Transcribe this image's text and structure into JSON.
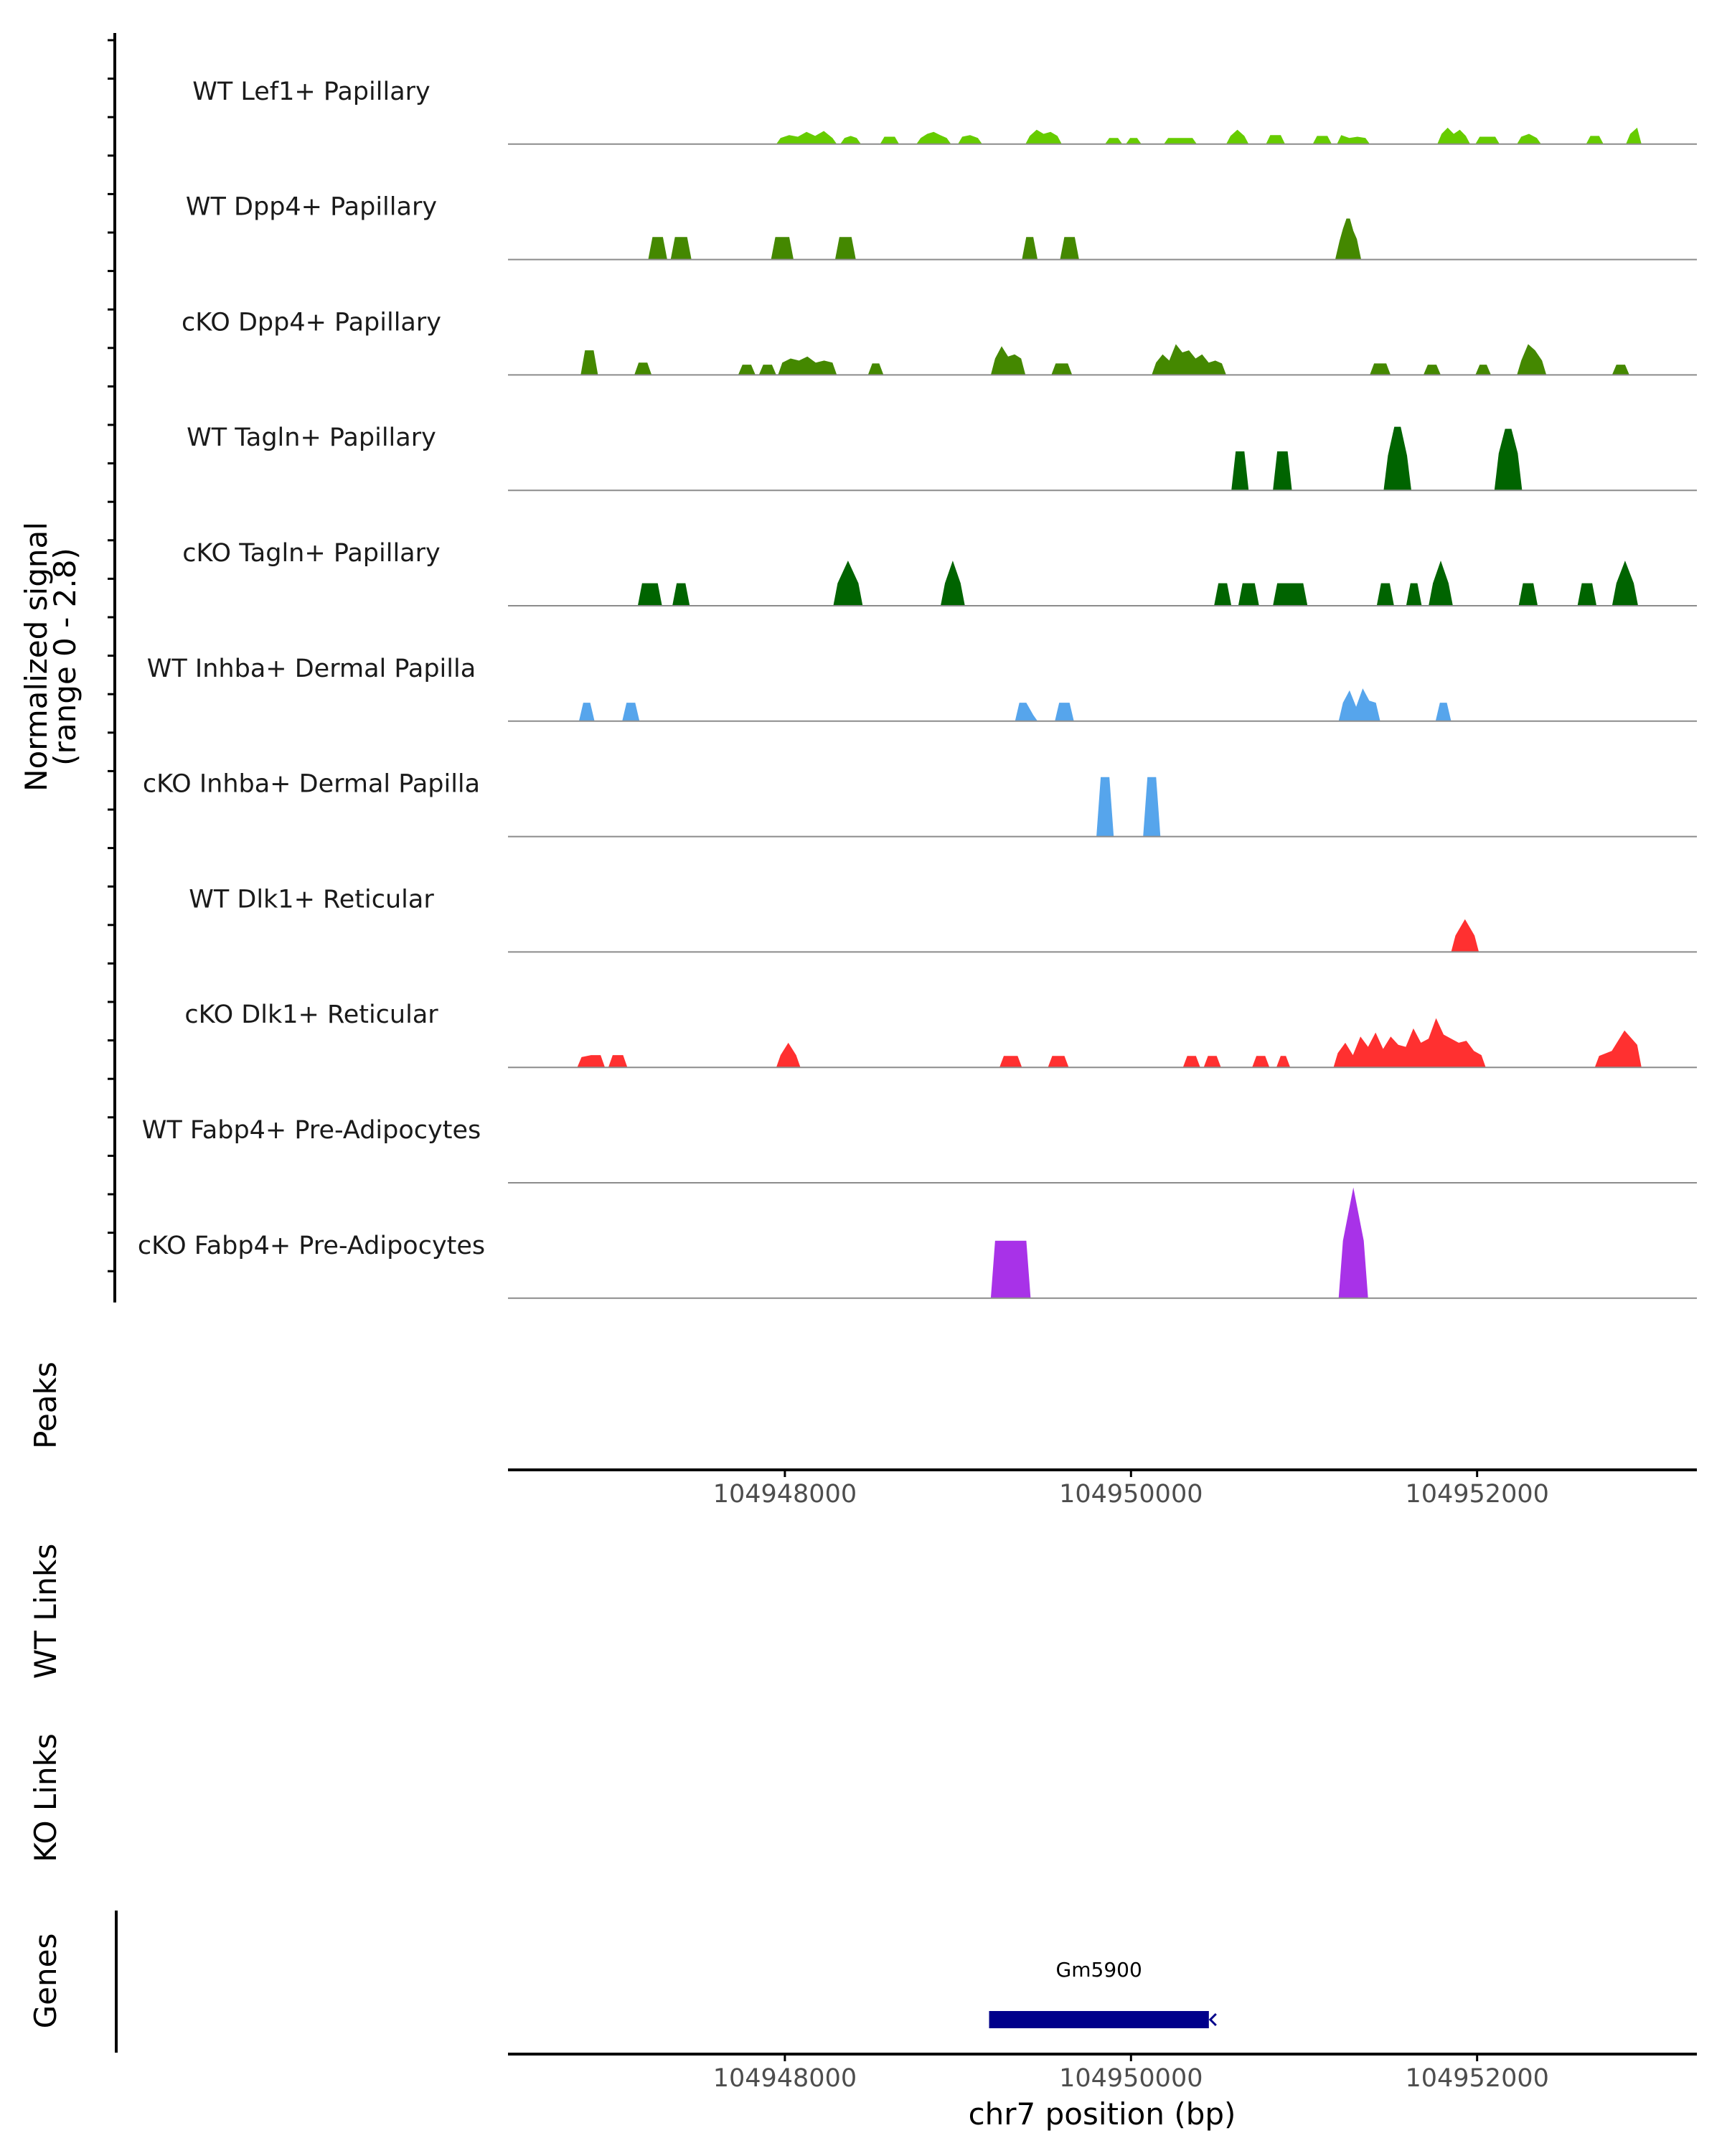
{
  "chart_data": {
    "type": "area",
    "title": "",
    "chromosome": "chr7",
    "xlabel": "chr7 position (bp)",
    "xlim": [
      104946400,
      104953270
    ],
    "x_ticks": [
      104948000,
      104950000,
      104952000
    ],
    "x_tick_labels": [
      "104948000",
      "104950000",
      "104952000"
    ],
    "ylabel_line1": "Normalized signal",
    "ylabel_line2": "(range 0 - 2.8)",
    "ylim": [
      0,
      2.8
    ],
    "peaks_label": "Peaks",
    "wt_links_label": "WT Links",
    "ko_links_label": "KO Links",
    "genes_label": "Genes",
    "gene": {
      "name": "Gm5900",
      "start": 104949180,
      "end": 104950450,
      "strand": "-",
      "color": "#00008B"
    },
    "series": [
      {
        "name": "WT Lef1+ Papillary",
        "color": "#66CC00",
        "segments": [
          {
            "start": 104947950,
            "end": 104948300,
            "heights": [
              0.15,
              0.22,
              0.18,
              0.3,
              0.2,
              0.32,
              0.15
            ]
          },
          {
            "start": 104948320,
            "end": 104948440,
            "heights": [
              0.15,
              0.2,
              0.15
            ]
          },
          {
            "start": 104948550,
            "end": 104948660,
            "heights": [
              0.18,
              0.18
            ]
          },
          {
            "start": 104948760,
            "end": 104948960,
            "heights": [
              0.15,
              0.25,
              0.3,
              0.22,
              0.15
            ]
          },
          {
            "start": 104949000,
            "end": 104949140,
            "heights": [
              0.18,
              0.22,
              0.15
            ]
          },
          {
            "start": 104949390,
            "end": 104949600,
            "heights": [
              0.2,
              0.35,
              0.25,
              0.3,
              0.2
            ]
          },
          {
            "start": 104949850,
            "end": 104949950,
            "heights": [
              0.15,
              0.15
            ]
          },
          {
            "start": 104949970,
            "end": 104950060,
            "heights": [
              0.15,
              0.15
            ]
          },
          {
            "start": 104950190,
            "end": 104950380,
            "heights": [
              0.15,
              0.15,
              0.15
            ]
          },
          {
            "start": 104950550,
            "end": 104950680,
            "heights": [
              0.2,
              0.35,
              0.2
            ]
          },
          {
            "start": 104950780,
            "end": 104950890,
            "heights": [
              0.22,
              0.22
            ]
          },
          {
            "start": 104951050,
            "end": 104951160,
            "heights": [
              0.2,
              0.2
            ]
          },
          {
            "start": 104951190,
            "end": 104951380,
            "heights": [
              0.22,
              0.15,
              0.18,
              0.15
            ]
          },
          {
            "start": 104951770,
            "end": 104951960,
            "heights": [
              0.25,
              0.4,
              0.25,
              0.35,
              0.2
            ]
          },
          {
            "start": 104951990,
            "end": 104952130,
            "heights": [
              0.18,
              0.18
            ]
          },
          {
            "start": 104952230,
            "end": 104952370,
            "heights": [
              0.18,
              0.25,
              0.15
            ]
          },
          {
            "start": 104952630,
            "end": 104952730,
            "heights": [
              0.2,
              0.2
            ]
          },
          {
            "start": 104952860,
            "end": 104952950,
            "heights": [
              0.25,
              0.4
            ]
          }
        ]
      },
      {
        "name": "WT Dpp4+ Papillary",
        "color": "#448800",
        "segments": [
          {
            "start": 104947210,
            "end": 104947320,
            "heights": [
              0.55,
              0.55
            ]
          },
          {
            "start": 104947340,
            "end": 104947460,
            "heights": [
              0.55,
              0.55
            ]
          },
          {
            "start": 104947920,
            "end": 104948050,
            "heights": [
              0.55,
              0.55
            ]
          },
          {
            "start": 104948290,
            "end": 104948410,
            "heights": [
              0.55,
              0.55
            ]
          },
          {
            "start": 104949370,
            "end": 104949460,
            "heights": [
              0.55,
              0.55
            ]
          },
          {
            "start": 104949590,
            "end": 104949700,
            "heights": [
              0.55,
              0.55
            ]
          },
          {
            "start": 104951180,
            "end": 104951330,
            "heights": [
              0.45,
              0.75,
              1.0,
              1.0,
              0.7,
              0.5
            ]
          }
        ]
      },
      {
        "name": "cKO Dpp4+ Papillary",
        "color": "#448800",
        "segments": [
          {
            "start": 104946820,
            "end": 104946920,
            "heights": [
              0.6,
              0.6
            ]
          },
          {
            "start": 104947130,
            "end": 104947230,
            "heights": [
              0.3,
              0.3
            ]
          },
          {
            "start": 104947730,
            "end": 104947830,
            "heights": [
              0.25,
              0.25
            ]
          },
          {
            "start": 104947850,
            "end": 104947950,
            "heights": [
              0.25,
              0.25
            ]
          },
          {
            "start": 104947960,
            "end": 104948300,
            "heights": [
              0.3,
              0.4,
              0.35,
              0.45,
              0.3,
              0.35,
              0.3
            ]
          },
          {
            "start": 104948480,
            "end": 104948570,
            "heights": [
              0.28,
              0.28
            ]
          },
          {
            "start": 104949190,
            "end": 104949390,
            "heights": [
              0.4,
              0.7,
              0.45,
              0.5,
              0.4
            ]
          },
          {
            "start": 104949540,
            "end": 104949660,
            "heights": [
              0.28,
              0.28
            ]
          },
          {
            "start": 104950120,
            "end": 104950550,
            "heights": [
              0.3,
              0.5,
              0.35,
              0.75,
              0.55,
              0.6,
              0.4,
              0.5,
              0.3,
              0.35,
              0.28
            ]
          },
          {
            "start": 104951380,
            "end": 104951500,
            "heights": [
              0.28,
              0.28
            ]
          },
          {
            "start": 104951690,
            "end": 104951790,
            "heights": [
              0.25,
              0.25
            ]
          },
          {
            "start": 104951990,
            "end": 104952080,
            "heights": [
              0.25,
              0.25
            ]
          },
          {
            "start": 104952230,
            "end": 104952400,
            "heights": [
              0.35,
              0.75,
              0.6,
              0.35
            ]
          },
          {
            "start": 104952780,
            "end": 104952880,
            "heights": [
              0.25,
              0.25
            ]
          }
        ]
      },
      {
        "name": "WT Tagln+ Papillary",
        "color": "#006400",
        "segments": [
          {
            "start": 104950580,
            "end": 104950680,
            "heights": [
              0.95,
              0.95
            ]
          },
          {
            "start": 104950820,
            "end": 104950930,
            "heights": [
              0.95,
              0.95
            ]
          },
          {
            "start": 104951460,
            "end": 104951620,
            "heights": [
              0.85,
              1.55,
              1.55,
              0.85
            ]
          },
          {
            "start": 104952100,
            "end": 104952260,
            "heights": [
              0.9,
              1.5,
              1.5,
              0.9
            ]
          }
        ]
      },
      {
        "name": "cKO Tagln+ Papillary",
        "color": "#006400",
        "segments": [
          {
            "start": 104947150,
            "end": 104947290,
            "heights": [
              0.55,
              0.55
            ]
          },
          {
            "start": 104947350,
            "end": 104947450,
            "heights": [
              0.55,
              0.55
            ]
          },
          {
            "start": 104948280,
            "end": 104948450,
            "heights": [
              0.55,
              1.1,
              0.55
            ]
          },
          {
            "start": 104948900,
            "end": 104949040,
            "heights": [
              0.55,
              1.1,
              0.55
            ]
          },
          {
            "start": 104950480,
            "end": 104950580,
            "heights": [
              0.55,
              0.55
            ]
          },
          {
            "start": 104950620,
            "end": 104950740,
            "heights": [
              0.55,
              0.55
            ]
          },
          {
            "start": 104950820,
            "end": 104951020,
            "heights": [
              0.55,
              0.55
            ]
          },
          {
            "start": 104951420,
            "end": 104951520,
            "heights": [
              0.55,
              0.55
            ]
          },
          {
            "start": 104951590,
            "end": 104951680,
            "heights": [
              0.55,
              0.55
            ]
          },
          {
            "start": 104951720,
            "end": 104951860,
            "heights": [
              0.55,
              1.1,
              0.55
            ]
          },
          {
            "start": 104952240,
            "end": 104952350,
            "heights": [
              0.55,
              0.55
            ]
          },
          {
            "start": 104952580,
            "end": 104952690,
            "heights": [
              0.55,
              0.55
            ]
          },
          {
            "start": 104952780,
            "end": 104952930,
            "heights": [
              0.55,
              1.1,
              0.55
            ]
          }
        ]
      },
      {
        "name": "WT Inhba+ Dermal Papilla",
        "color": "#56A5EC",
        "segments": [
          {
            "start": 104946810,
            "end": 104946900,
            "heights": [
              0.45,
              0.45
            ]
          },
          {
            "start": 104947060,
            "end": 104947160,
            "heights": [
              0.45,
              0.45
            ]
          },
          {
            "start": 104949330,
            "end": 104949460,
            "heights": [
              0.45,
              0.45,
              0.15
            ]
          },
          {
            "start": 104949560,
            "end": 104949670,
            "heights": [
              0.45,
              0.45
            ]
          },
          {
            "start": 104951200,
            "end": 104951440,
            "heights": [
              0.45,
              0.75,
              0.35,
              0.8,
              0.5,
              0.45
            ]
          },
          {
            "start": 104951760,
            "end": 104951850,
            "heights": [
              0.45,
              0.45
            ]
          }
        ]
      },
      {
        "name": "cKO Inhba+ Dermal Papilla",
        "color": "#56A5EC",
        "segments": [
          {
            "start": 104949800,
            "end": 104949900,
            "heights": [
              1.45,
              1.45
            ]
          },
          {
            "start": 104950070,
            "end": 104950170,
            "heights": [
              1.45,
              1.45
            ]
          }
        ]
      },
      {
        "name": "WT Dlk1+ Reticular",
        "color": "#FF3030",
        "segments": [
          {
            "start": 104951850,
            "end": 104952010,
            "heights": [
              0.4,
              0.8,
              0.4
            ]
          }
        ]
      },
      {
        "name": "cKO Dlk1+ Reticular",
        "color": "#FF3030",
        "segments": [
          {
            "start": 104946800,
            "end": 104946960,
            "heights": [
              0.25,
              0.3,
              0.3
            ]
          },
          {
            "start": 104946980,
            "end": 104947090,
            "heights": [
              0.3,
              0.3
            ]
          },
          {
            "start": 104947950,
            "end": 104948090,
            "heights": [
              0.3,
              0.6,
              0.3
            ]
          },
          {
            "start": 104949240,
            "end": 104949370,
            "heights": [
              0.28,
              0.28
            ]
          },
          {
            "start": 104949520,
            "end": 104949640,
            "heights": [
              0.28,
              0.28
            ]
          },
          {
            "start": 104950300,
            "end": 104950400,
            "heights": [
              0.28,
              0.28
            ]
          },
          {
            "start": 104950420,
            "end": 104950520,
            "heights": [
              0.28,
              0.28
            ]
          },
          {
            "start": 104950700,
            "end": 104950800,
            "heights": [
              0.28,
              0.28
            ]
          },
          {
            "start": 104950840,
            "end": 104950920,
            "heights": [
              0.28,
              0.28
            ]
          },
          {
            "start": 104951170,
            "end": 104952050,
            "heights": [
              0.35,
              0.6,
              0.3,
              0.75,
              0.5,
              0.85,
              0.45,
              0.75,
              0.55,
              0.5,
              0.95,
              0.6,
              0.7,
              1.2,
              0.8,
              0.7,
              0.6,
              0.65,
              0.4,
              0.3
            ]
          },
          {
            "start": 104952680,
            "end": 104952950,
            "heights": [
              0.28,
              0.4,
              0.9,
              0.55
            ]
          }
        ]
      },
      {
        "name": "WT Fabp4+ Pre-Adipocytes",
        "color": "#A832E8",
        "segments": []
      },
      {
        "name": "cKO Fabp4+ Pre-Adipocytes",
        "color": "#A832E8",
        "segments": [
          {
            "start": 104949190,
            "end": 104949420,
            "heights": [
              1.4,
              1.4
            ]
          },
          {
            "start": 104951200,
            "end": 104951370,
            "heights": [
              1.4,
              2.7,
              1.4
            ]
          }
        ]
      }
    ]
  }
}
